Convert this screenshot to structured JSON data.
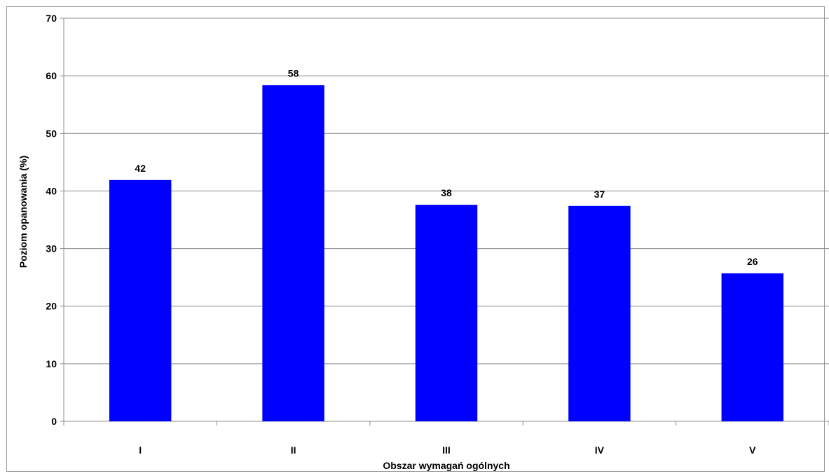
{
  "chart_data": {
    "type": "bar",
    "categories": [
      "I",
      "II",
      "III",
      "IV",
      "V"
    ],
    "values": [
      42,
      58,
      38,
      37,
      26
    ],
    "bar_values": [
      41.9,
      58.4,
      37.6,
      37.4,
      25.7
    ],
    "data_labels": [
      "42",
      "58",
      "38",
      "37",
      "26"
    ],
    "title": "",
    "xlabel": "Obszar wymagań ogólnych",
    "ylabel": "Poziom opanowania (%)",
    "ylim": [
      0,
      70
    ],
    "yticks": [
      "0",
      "10",
      "20",
      "30",
      "40",
      "50",
      "60",
      "70"
    ],
    "grid": true,
    "legend": "none",
    "bar_color": "#0000ff"
  }
}
